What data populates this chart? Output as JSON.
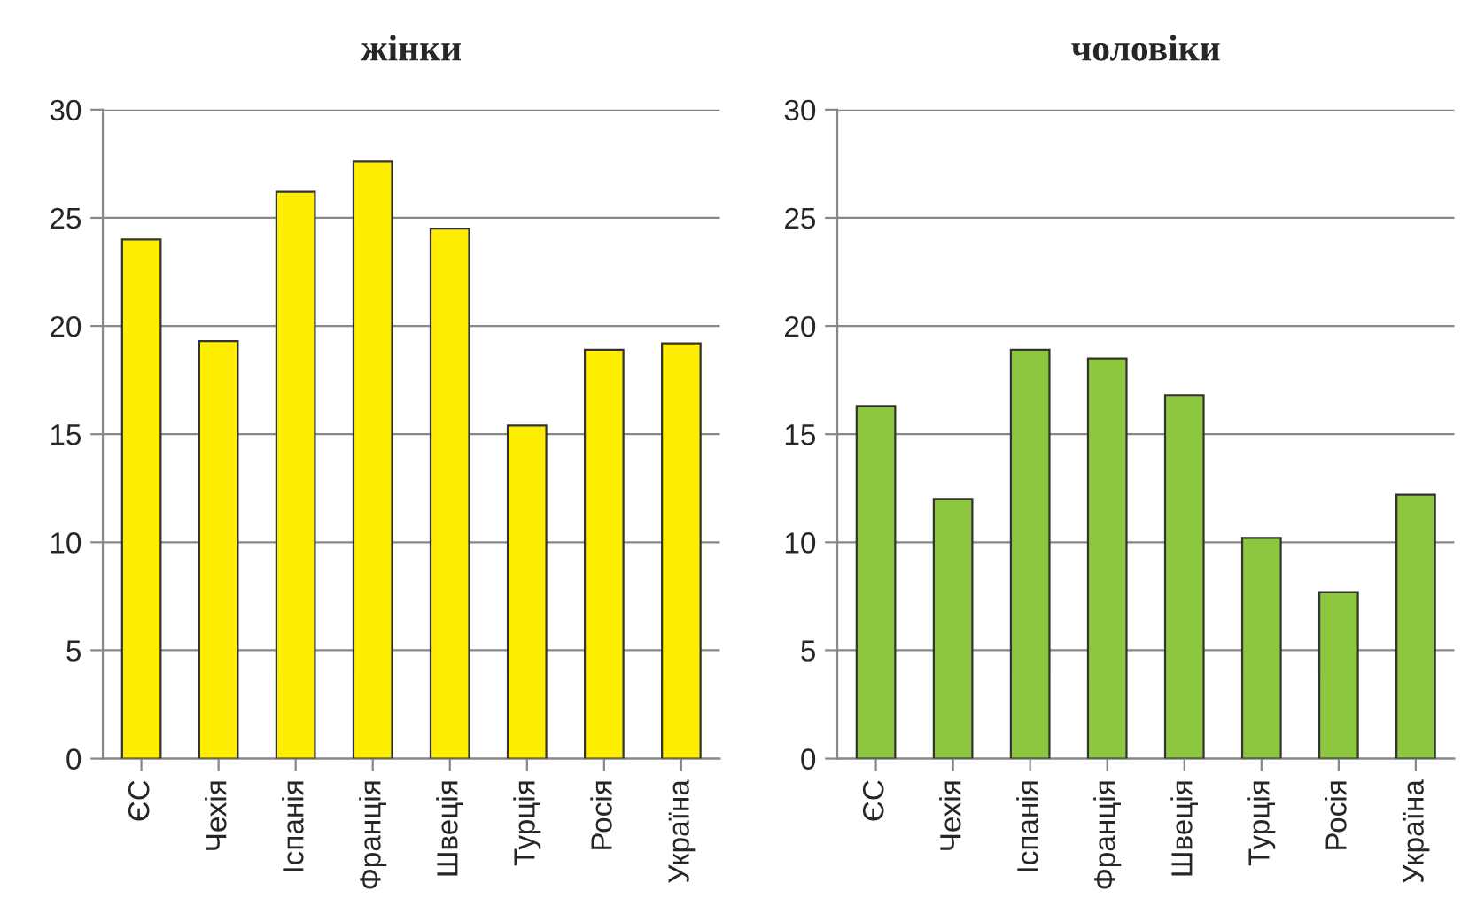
{
  "chart_data": [
    {
      "type": "bar",
      "title": "жінки",
      "categories": [
        "ЄС",
        "Чехія",
        "Іспанія",
        "Франція",
        "Швеція",
        "Турція",
        "Росія",
        "Україна"
      ],
      "values": [
        24.0,
        19.3,
        26.2,
        27.6,
        24.5,
        15.4,
        18.9,
        19.2
      ],
      "color": "#ffee00",
      "ylim": [
        0,
        30
      ],
      "yticks": [
        0,
        5,
        10,
        15,
        20,
        25,
        30
      ],
      "grid": "y"
    },
    {
      "type": "bar",
      "title": "чоловіки",
      "categories": [
        "ЄС",
        "Чехія",
        "Іспанія",
        "Франція",
        "Швеція",
        "Турція",
        "Росія",
        "Україна"
      ],
      "values": [
        16.3,
        12.0,
        18.9,
        18.5,
        16.8,
        10.2,
        7.7,
        12.2
      ],
      "color": "#8dc63f",
      "ylim": [
        0,
        30
      ],
      "yticks": [
        0,
        5,
        10,
        15,
        20,
        25,
        30
      ],
      "grid": "y"
    }
  ]
}
